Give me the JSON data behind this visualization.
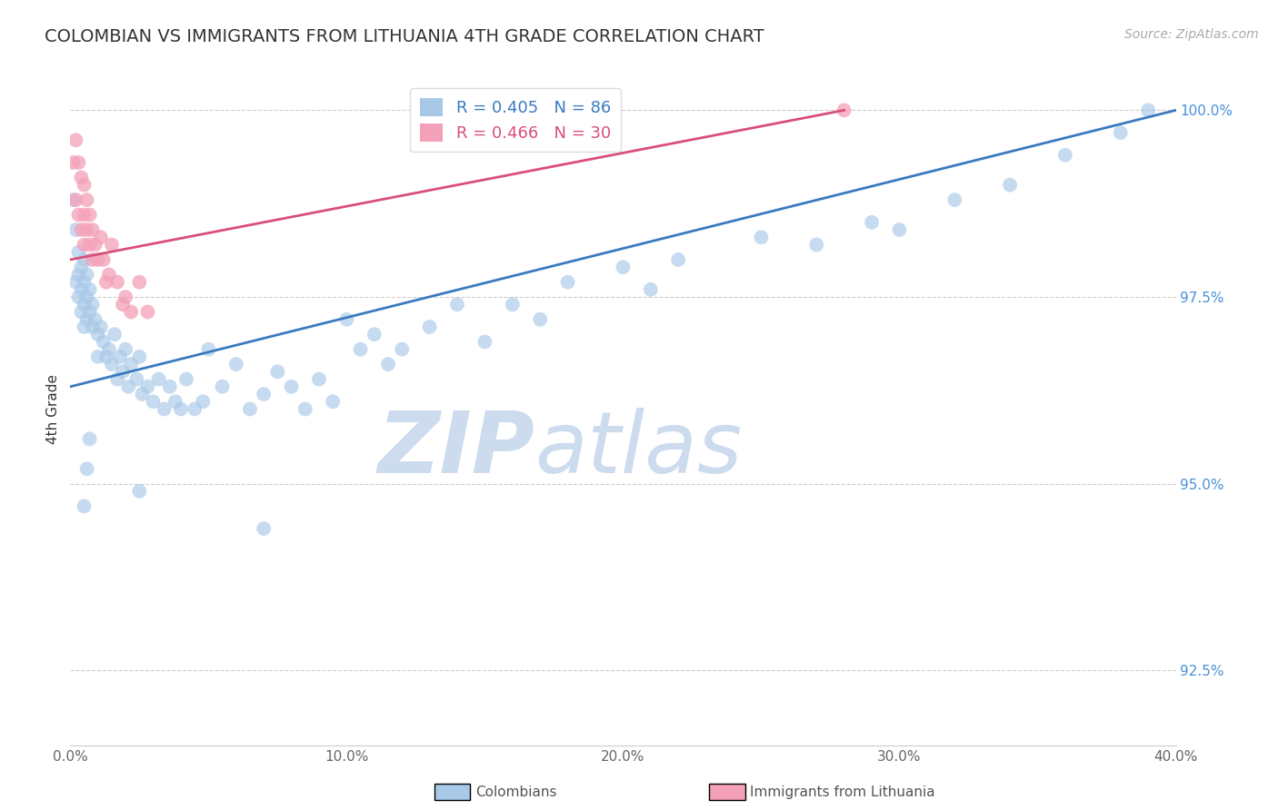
{
  "title": "COLOMBIAN VS IMMIGRANTS FROM LITHUANIA 4TH GRADE CORRELATION CHART",
  "source_text": "Source: ZipAtlas.com",
  "ylabel": "4th Grade",
  "xlim": [
    0.0,
    0.4
  ],
  "ylim": [
    0.915,
    1.005
  ],
  "xtick_labels": [
    "0.0%",
    "10.0%",
    "20.0%",
    "30.0%",
    "40.0%"
  ],
  "xtick_values": [
    0.0,
    0.1,
    0.2,
    0.3,
    0.4
  ],
  "ytick_labels": [
    "92.5%",
    "95.0%",
    "97.5%",
    "100.0%"
  ],
  "ytick_values": [
    0.925,
    0.95,
    0.975,
    1.0
  ],
  "blue_color": "#a8c8e8",
  "pink_color": "#f4a0b8",
  "blue_line_color": "#3a7abf",
  "pink_line_color": "#d94f7a",
  "legend_R_blue": "R = 0.405",
  "legend_N_blue": "N = 86",
  "legend_R_pink": "R = 0.466",
  "legend_N_pink": "N = 30",
  "blue_scatter_x": [
    0.001,
    0.002,
    0.002,
    0.003,
    0.003,
    0.003,
    0.004,
    0.004,
    0.004,
    0.005,
    0.005,
    0.005,
    0.005,
    0.006,
    0.006,
    0.006,
    0.007,
    0.007,
    0.008,
    0.008,
    0.009,
    0.01,
    0.01,
    0.011,
    0.012,
    0.013,
    0.014,
    0.015,
    0.016,
    0.017,
    0.018,
    0.019,
    0.02,
    0.021,
    0.022,
    0.024,
    0.025,
    0.026,
    0.028,
    0.03,
    0.032,
    0.034,
    0.036,
    0.038,
    0.04,
    0.042,
    0.045,
    0.048,
    0.05,
    0.055,
    0.06,
    0.065,
    0.07,
    0.075,
    0.08,
    0.085,
    0.09,
    0.095,
    0.1,
    0.105,
    0.11,
    0.115,
    0.12,
    0.13,
    0.14,
    0.15,
    0.16,
    0.17,
    0.18,
    0.2,
    0.21,
    0.22,
    0.25,
    0.27,
    0.29,
    0.3,
    0.32,
    0.34,
    0.36,
    0.38,
    0.005,
    0.006,
    0.007,
    0.025,
    0.07,
    0.39
  ],
  "blue_scatter_y": [
    0.988,
    0.984,
    0.977,
    0.981,
    0.978,
    0.975,
    0.979,
    0.976,
    0.973,
    0.98,
    0.977,
    0.974,
    0.971,
    0.978,
    0.975,
    0.972,
    0.976,
    0.973,
    0.974,
    0.971,
    0.972,
    0.97,
    0.967,
    0.971,
    0.969,
    0.967,
    0.968,
    0.966,
    0.97,
    0.964,
    0.967,
    0.965,
    0.968,
    0.963,
    0.966,
    0.964,
    0.967,
    0.962,
    0.963,
    0.961,
    0.964,
    0.96,
    0.963,
    0.961,
    0.96,
    0.964,
    0.96,
    0.961,
    0.968,
    0.963,
    0.966,
    0.96,
    0.962,
    0.965,
    0.963,
    0.96,
    0.964,
    0.961,
    0.972,
    0.968,
    0.97,
    0.966,
    0.968,
    0.971,
    0.974,
    0.969,
    0.974,
    0.972,
    0.977,
    0.979,
    0.976,
    0.98,
    0.983,
    0.982,
    0.985,
    0.984,
    0.988,
    0.99,
    0.994,
    0.997,
    0.947,
    0.952,
    0.956,
    0.949,
    0.944,
    1.0
  ],
  "pink_scatter_x": [
    0.001,
    0.002,
    0.002,
    0.003,
    0.003,
    0.004,
    0.004,
    0.005,
    0.005,
    0.005,
    0.006,
    0.006,
    0.007,
    0.007,
    0.008,
    0.008,
    0.009,
    0.01,
    0.011,
    0.012,
    0.013,
    0.014,
    0.015,
    0.017,
    0.019,
    0.02,
    0.022,
    0.025,
    0.028,
    0.28
  ],
  "pink_scatter_y": [
    0.993,
    0.996,
    0.988,
    0.993,
    0.986,
    0.991,
    0.984,
    0.99,
    0.986,
    0.982,
    0.988,
    0.984,
    0.986,
    0.982,
    0.984,
    0.98,
    0.982,
    0.98,
    0.983,
    0.98,
    0.977,
    0.978,
    0.982,
    0.977,
    0.974,
    0.975,
    0.973,
    0.977,
    0.973,
    1.0
  ],
  "blue_line_x0": 0.0,
  "blue_line_x1": 0.4,
  "blue_line_y0": 0.963,
  "blue_line_y1": 1.0,
  "pink_line_x0": 0.0,
  "pink_line_x1": 0.28,
  "pink_line_y0": 0.98,
  "pink_line_y1": 1.0,
  "watermark_line1": "ZIP",
  "watermark_line2": "atlas",
  "watermark_color": "#ccdcee",
  "background_color": "#ffffff",
  "grid_color": "#cccccc",
  "grid_style": "--"
}
